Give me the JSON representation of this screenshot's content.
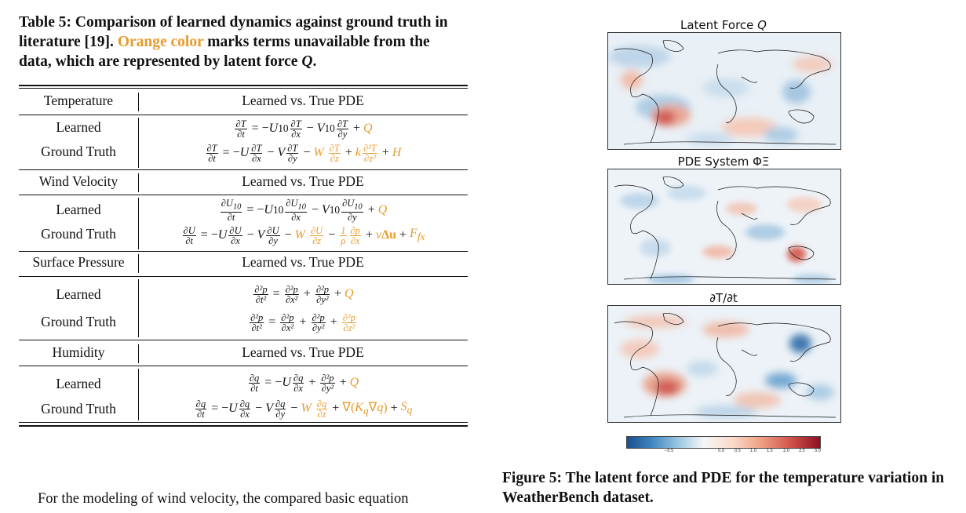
{
  "table_caption": {
    "prefix": "Table 5: Comparison of learned dynamics against ground truth in literature [19]. ",
    "orange": "Orange color",
    "suffix": " marks terms unavailable from the data, which are represented by latent force ",
    "symbol": "Q",
    "end": "."
  },
  "table": {
    "sections": [
      {
        "label": "Temperature",
        "header": "Learned vs. True PDE",
        "rows": [
          "Learned",
          "Ground Truth"
        ]
      },
      {
        "label": "Wind Velocity",
        "header": "Learned vs. True PDE",
        "rows": [
          "Learned",
          "Ground Truth"
        ]
      },
      {
        "label": "Surface Pressure",
        "header": "Learned vs. True PDE",
        "rows": [
          "Learned",
          "Ground Truth"
        ]
      },
      {
        "label": "Humidity",
        "header": "Learned vs. True PDE",
        "rows": [
          "Learned",
          "Ground Truth"
        ]
      }
    ]
  },
  "body_text": "For the modeling of wind velocity, the compared basic equation",
  "figure": {
    "panels": [
      {
        "title_prefix": "Latent Force ",
        "title_symbol": "Q"
      },
      {
        "title_prefix": "PDE System ΦΞ",
        "title_symbol": ""
      },
      {
        "title_prefix": "∂T/∂t",
        "title_symbol": ""
      }
    ],
    "colorbar_ticks": [
      "−0.5",
      "0.0",
      "0.5",
      "1.0",
      "1.5",
      "2.0",
      "2.5",
      "3.0"
    ],
    "colors": {
      "neg": "#1c4f8e",
      "zero": "#f6f6f6",
      "pos": "#8e1022"
    },
    "caption": "Figure 5: The latent force and PDE for the temperature variation in WeatherBench dataset."
  },
  "colors": {
    "orange": "#e89c2d",
    "text": "#111111"
  }
}
